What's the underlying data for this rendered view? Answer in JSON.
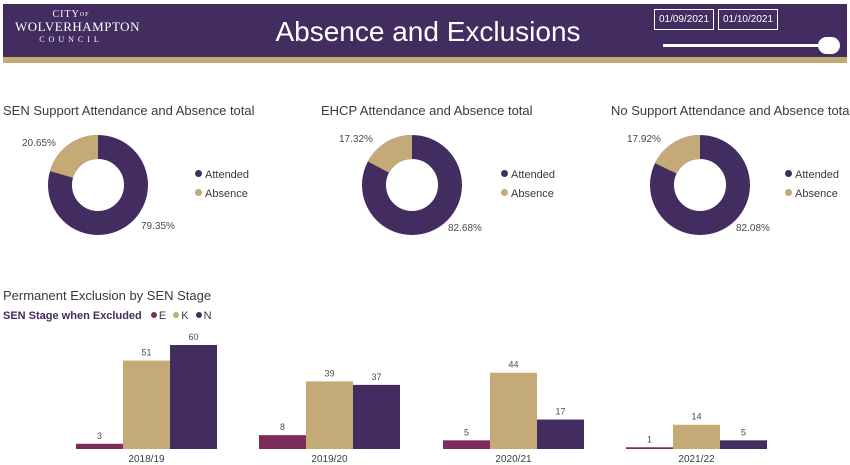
{
  "header": {
    "logo": {
      "line1": "CITY",
      "line1_sub": "OF",
      "line2": "WOLVERHAMPTON",
      "line3": "COUNCIL"
    },
    "title": "Absence and Exclusions",
    "date_start": "01/09/2021",
    "date_end": "01/10/2021"
  },
  "colors": {
    "purple": "#432c5f",
    "gold": "#c3aa77",
    "maroon": "#7b2c5b"
  },
  "donuts": [
    {
      "title": "SEN Support Attendance and Absence total",
      "attended_pct": 79.35,
      "absence_pct": 20.65,
      "attended_label": "79.35%",
      "absence_label": "20.65%"
    },
    {
      "title": "EHCP Attendance and Absence total",
      "attended_pct": 82.68,
      "absence_pct": 17.32,
      "attended_label": "82.68%",
      "absence_label": "17.32%"
    },
    {
      "title": "No Support Attendance and Absence total",
      "attended_pct": 82.08,
      "absence_pct": 17.92,
      "attended_label": "82.08%",
      "absence_label": "17.92%"
    }
  ],
  "donut_legend": {
    "attended": "Attended",
    "absence": "Absence"
  },
  "exclusions": {
    "title": "Permanent Exclusion by SEN Stage",
    "legend_title": "SEN Stage when Excluded",
    "legend": [
      {
        "name": "E"
      },
      {
        "name": "K"
      },
      {
        "name": "N"
      }
    ]
  },
  "chart_data": {
    "type": "bar",
    "title": "Permanent Exclusion by SEN Stage",
    "legend_title": "SEN Stage when Excluded",
    "legend_placement": "top-left",
    "grid": false,
    "categories": [
      "2018/19",
      "2019/20",
      "2020/21",
      "2021/22"
    ],
    "series": [
      {
        "name": "E",
        "color": "#7b2c5b",
        "values": [
          3,
          8,
          5,
          1
        ]
      },
      {
        "name": "K",
        "color": "#c3aa77",
        "values": [
          51,
          39,
          44,
          14
        ]
      },
      {
        "name": "N",
        "color": "#432c5f",
        "values": [
          60,
          37,
          17,
          5
        ]
      }
    ],
    "ylim": [
      0,
      60
    ]
  }
}
